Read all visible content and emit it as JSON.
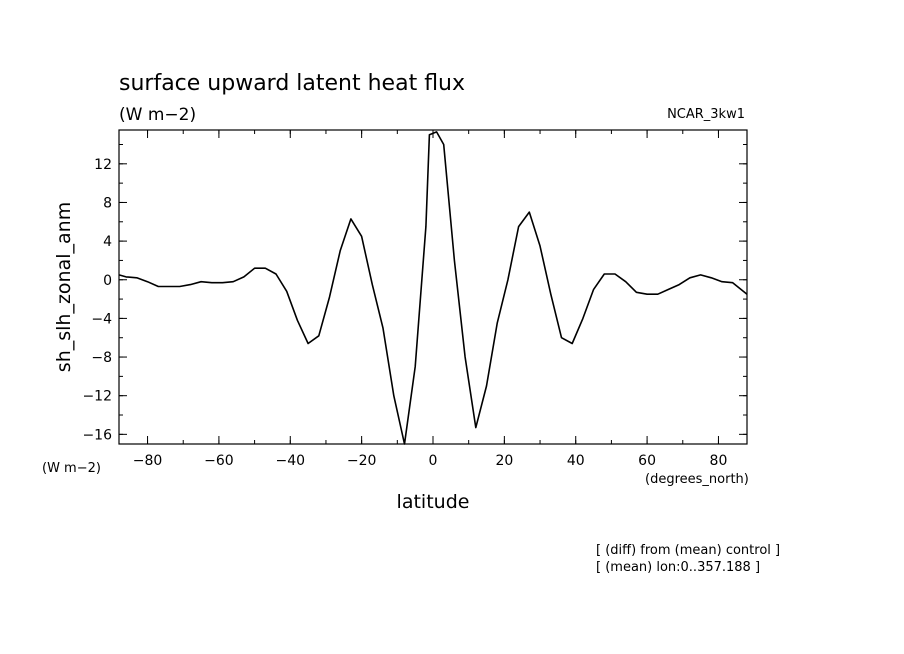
{
  "chart_data": {
    "type": "line",
    "title": "surface upward latent heat flux",
    "subtitle": "(W m−2)",
    "run_label": "NCAR_3kw1",
    "xlabel": "latitude",
    "x_units": "(degrees_north)",
    "ylabel": "sh_slh_zonal_anm",
    "y_units": "(W m−2)",
    "xlim": [
      -88,
      88
    ],
    "ylim": [
      -17,
      15.5
    ],
    "x_ticks": [
      -80,
      -60,
      -40,
      -20,
      0,
      20,
      40,
      60,
      80
    ],
    "y_ticks": [
      12,
      8,
      4,
      0,
      -4,
      -8,
      -12,
      -16
    ],
    "grid": false,
    "notes": [
      "[ (diff) from (mean) control ]",
      "[ (mean) lon:0..357.188 ]"
    ],
    "series": [
      {
        "x": [
          -88,
          -86,
          -83,
          -80,
          -77,
          -74,
          -71,
          -68,
          -65,
          -62,
          -59,
          -56,
          -53,
          -50,
          -47,
          -44,
          -41,
          -38,
          -35,
          -32,
          -29,
          -26,
          -23,
          -20,
          -17,
          -14,
          -11,
          -8,
          -5,
          -2,
          -1,
          1,
          3,
          6,
          9,
          12,
          15,
          18,
          21,
          24,
          27,
          30,
          33,
          36,
          39,
          42,
          45,
          48,
          51,
          54,
          57,
          60,
          63,
          66,
          69,
          72,
          75,
          78,
          81,
          84,
          88
        ],
        "y": [
          0.5,
          0.3,
          0.2,
          -0.2,
          -0.7,
          -0.7,
          -0.7,
          -0.5,
          -0.2,
          -0.3,
          -0.3,
          -0.2,
          0.3,
          1.2,
          1.2,
          0.6,
          -1.2,
          -4.2,
          -6.6,
          -5.8,
          -1.8,
          3.0,
          6.3,
          4.5,
          -0.5,
          -5.0,
          -12.0,
          -17.0,
          -9.0,
          5.5,
          15.0,
          15.3,
          14.0,
          2.0,
          -8.0,
          -15.3,
          -11.0,
          -4.5,
          0.0,
          5.5,
          7.0,
          3.5,
          -1.5,
          -6.0,
          -6.6,
          -4.0,
          -1.0,
          0.6,
          0.6,
          -0.2,
          -1.3,
          -1.5,
          -1.5,
          -1.0,
          -0.5,
          0.2,
          0.5,
          0.2,
          -0.2,
          -0.3,
          -1.5
        ]
      }
    ]
  }
}
